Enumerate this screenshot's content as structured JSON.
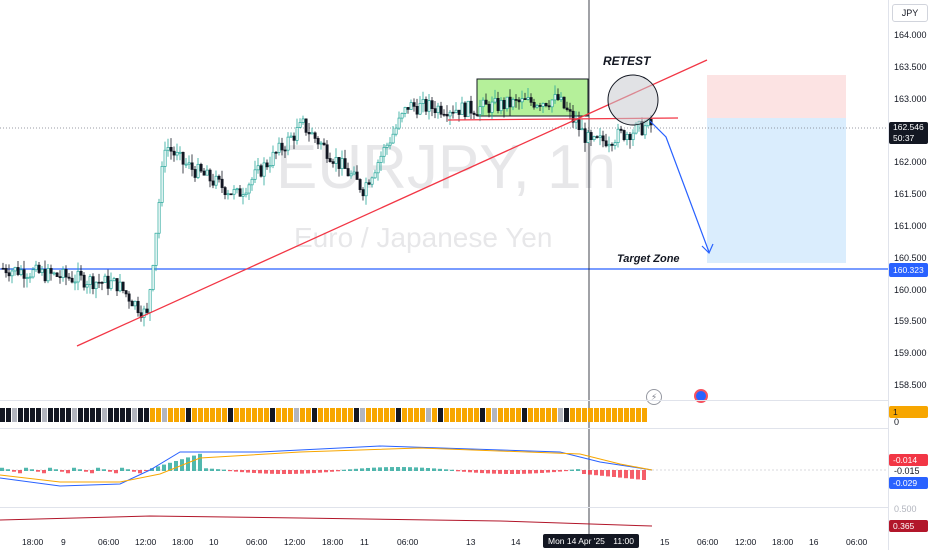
{
  "chart": {
    "symbol_watermark": "EURJPY, 1h",
    "description_watermark": "Euro / Japanese Yen",
    "currency": "JPY",
    "annotations": {
      "retest": "RETEST",
      "target_zone": "Target Zone"
    },
    "current_price": "162.546",
    "countdown": "50:37",
    "level_price": "160.323",
    "cursor_time_label": "Mon 14 Apr '25",
    "cursor_time_value": "11:00",
    "price_ticks": [
      "164.000",
      "163.500",
      "163.000",
      "162.500",
      "162.000",
      "161.500",
      "161.000",
      "160.500",
      "160.000",
      "159.500",
      "159.000",
      "158.500"
    ],
    "time_ticks": [
      "18:00",
      "9",
      "06:00",
      "12:00",
      "18:00",
      "10",
      "06:00",
      "12:00",
      "18:00",
      "11",
      "06:00",
      "13",
      "14",
      "15",
      "06:00",
      "12:00",
      "18:00",
      "16",
      "06:00"
    ],
    "indicator_value_1": "1",
    "indicator_value_0": "0",
    "macd_tags": [
      "-0.014",
      "-0.015",
      "-0.029"
    ],
    "lower_pane_value": "0.365",
    "lower_pane_ghost": "0.500",
    "colors": {
      "up": "#26a69a",
      "down": "#131722",
      "trendline": "#f23645",
      "level": "#2962ff",
      "target_box": "#bbdefb",
      "stop_box": "#fcdede",
      "consolidation": "#b5f09a"
    }
  }
}
